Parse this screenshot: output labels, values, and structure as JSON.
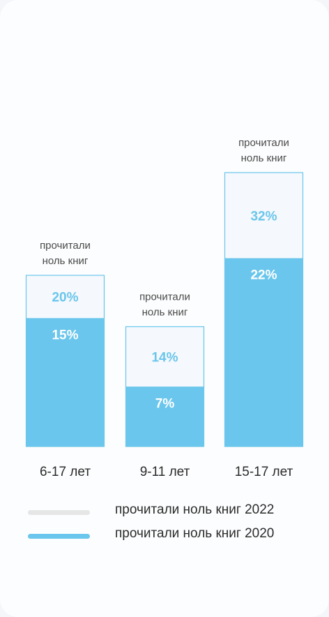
{
  "chart_data": {
    "type": "bar",
    "categories": [
      "6-17 лет",
      "9-11 лет",
      "15-17 лет"
    ],
    "series": [
      {
        "name": "прочитали ноль книг 2022",
        "values": [
          20,
          14,
          32
        ],
        "value_labels": [
          "20%",
          "14%",
          "32%"
        ]
      },
      {
        "name": "прочитали ноль книг 2020",
        "values": [
          15,
          7,
          22
        ],
        "value_labels": [
          "15%",
          "7%",
          "22%"
        ]
      }
    ],
    "bar_captions": [
      [
        "прочитали",
        "ноль книг"
      ],
      [
        "прочитали",
        "ноль книг"
      ],
      [
        "прочитали",
        "ноль книг"
      ]
    ],
    "ylim": [
      0,
      32
    ],
    "grid": false,
    "legend_position": "bottom",
    "colors": {
      "series_2022_fill": "#f5f8fc",
      "series_2022_label": "#6ac6ec",
      "series_2020_fill": "#6ac6ec",
      "series_2020_label": "#ffffff",
      "bar_border": "#6ac6ec",
      "legend_2022": "#e6e6e6",
      "legend_2020": "#6ac6ec"
    }
  }
}
